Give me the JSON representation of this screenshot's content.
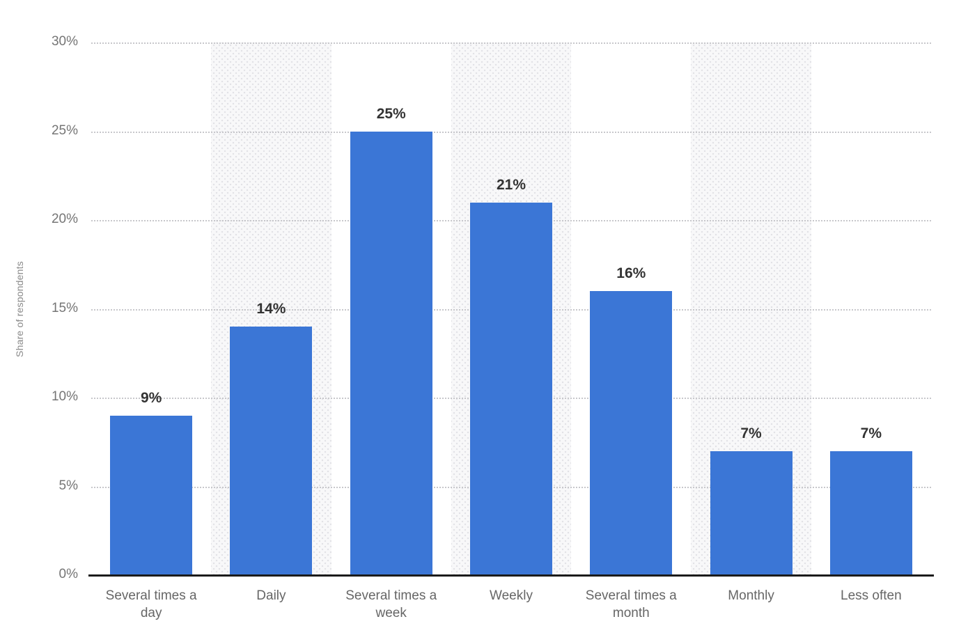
{
  "chart_data": {
    "type": "bar",
    "title": "",
    "xlabel": "",
    "ylabel": "Share of respondents",
    "categories": [
      "Several times a day",
      "Daily",
      "Several times a week",
      "Weekly",
      "Several times a month",
      "Monthly",
      "Less often"
    ],
    "category_display_labels": [
      "Several times a\nday",
      "Daily",
      "Several times a\nweek",
      "Weekly",
      "Several times a\nmonth",
      "Monthly",
      "Less often"
    ],
    "values": [
      9,
      14,
      25,
      21,
      16,
      7,
      7
    ],
    "value_labels": [
      "9%",
      "14%",
      "25%",
      "21%",
      "16%",
      "7%",
      "7%"
    ],
    "ylim": [
      0,
      30
    ],
    "yticks": [
      0,
      5,
      10,
      15,
      20,
      25,
      30
    ],
    "ytick_labels": [
      "0%",
      "5%",
      "10%",
      "15%",
      "20%",
      "25%",
      "30%"
    ],
    "grid": "horizontal-dotted",
    "legend": "none",
    "banded_category_indices": [
      1,
      3,
      5
    ],
    "colors": {
      "bar": "#3b76d6",
      "axis_line": "#1b1b1b",
      "gridline": "#c7c7cb",
      "band_background": "#f8f8f9",
      "band_dots": "#e1e1e5",
      "value_label": "#333333",
      "x_label": "#666666",
      "y_tick_label": "#757575",
      "y_axis_title": "#8a8a8a"
    }
  }
}
